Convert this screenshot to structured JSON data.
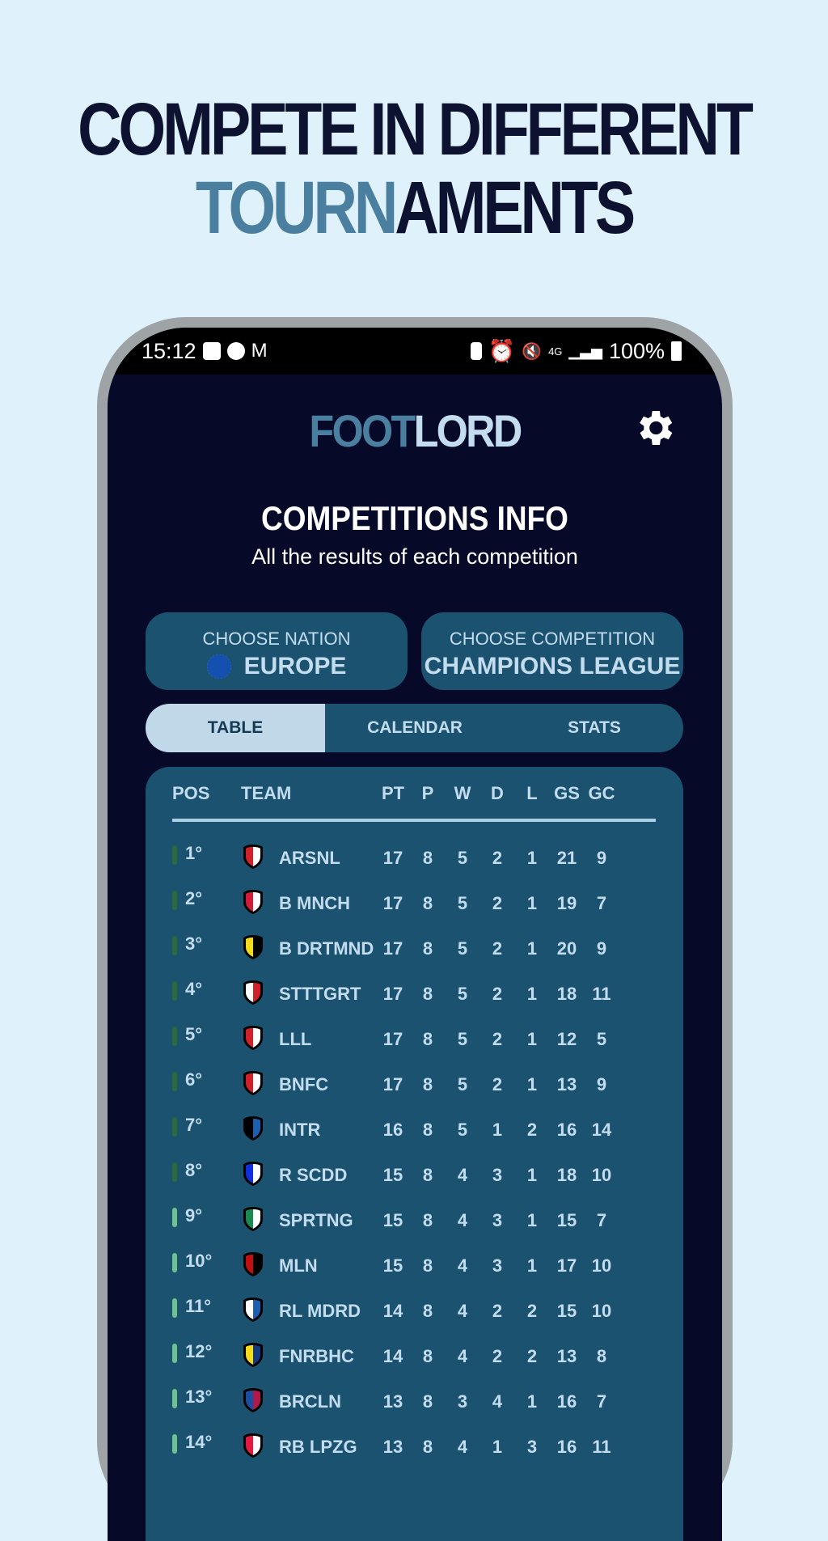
{
  "headline": {
    "line1": "COMPETE IN DIFFERENT",
    "line2_accent": "TOURN",
    "line2_rest": "AMENTS"
  },
  "status_bar": {
    "time": "15:12",
    "battery": "100%",
    "network": "4G"
  },
  "app": {
    "logo_a": "FOOT",
    "logo_b": "LORD",
    "title": "COMPETITIONS INFO",
    "subtitle": "All the results of each competition"
  },
  "nation": {
    "label": "CHOOSE NATION",
    "value": "EUROPE",
    "icon": "eu-flag-icon"
  },
  "competition": {
    "label": "CHOOSE COMPETITION",
    "value": "CHAMPIONS LEAGUE"
  },
  "tabs": [
    {
      "label": "TABLE",
      "active": true
    },
    {
      "label": "CALENDAR",
      "active": false
    },
    {
      "label": "STATS",
      "active": false
    }
  ],
  "colors": {
    "accent": "#4a7fa0",
    "background": "#060a28",
    "card": "#1b5270",
    "zone_top": "#2d6a3a",
    "zone_playoff": "#6fc28f"
  },
  "table": {
    "headers": [
      "POS",
      "TEAM",
      "PT",
      "P",
      "W",
      "D",
      "L",
      "GS",
      "GC"
    ],
    "rows": [
      {
        "pos": "1°",
        "team": "ARSNL",
        "pt": "17",
        "p": "8",
        "w": "5",
        "d": "2",
        "l": "1",
        "gs": "21",
        "gc": "9",
        "zone": "top",
        "kit": [
          "#d0202a",
          "#ffffff"
        ]
      },
      {
        "pos": "2°",
        "team": "B MNCH",
        "pt": "17",
        "p": "8",
        "w": "5",
        "d": "2",
        "l": "1",
        "gs": "19",
        "gc": "7",
        "zone": "top",
        "kit": [
          "#d01c3a",
          "#ffffff"
        ]
      },
      {
        "pos": "3°",
        "team": "B DRTMND",
        "pt": "17",
        "p": "8",
        "w": "5",
        "d": "2",
        "l": "1",
        "gs": "20",
        "gc": "9",
        "zone": "top",
        "kit": [
          "#f5dc1a",
          "#000000"
        ]
      },
      {
        "pos": "4°",
        "team": "STTTGRT",
        "pt": "17",
        "p": "8",
        "w": "5",
        "d": "2",
        "l": "1",
        "gs": "18",
        "gc": "11",
        "zone": "top",
        "kit": [
          "#ffffff",
          "#d0202a"
        ]
      },
      {
        "pos": "5°",
        "team": "LLL",
        "pt": "17",
        "p": "8",
        "w": "5",
        "d": "2",
        "l": "1",
        "gs": "12",
        "gc": "5",
        "zone": "top",
        "kit": [
          "#d0202a",
          "#ffffff"
        ]
      },
      {
        "pos": "6°",
        "team": "BNFC",
        "pt": "17",
        "p": "8",
        "w": "5",
        "d": "2",
        "l": "1",
        "gs": "13",
        "gc": "9",
        "zone": "top",
        "kit": [
          "#d0202a",
          "#ffffff"
        ]
      },
      {
        "pos": "7°",
        "team": "INTR",
        "pt": "16",
        "p": "8",
        "w": "5",
        "d": "1",
        "l": "2",
        "gs": "16",
        "gc": "14",
        "zone": "top",
        "kit": [
          "#000000",
          "#1a5fb0"
        ]
      },
      {
        "pos": "8°",
        "team": "R SCDD",
        "pt": "15",
        "p": "8",
        "w": "4",
        "d": "3",
        "l": "1",
        "gs": "18",
        "gc": "10",
        "zone": "top",
        "kit": [
          "#1030e0",
          "#ffffff"
        ]
      },
      {
        "pos": "9°",
        "team": "SPRTNG",
        "pt": "15",
        "p": "8",
        "w": "4",
        "d": "3",
        "l": "1",
        "gs": "15",
        "gc": "7",
        "zone": "playoff",
        "kit": [
          "#1a8a50",
          "#ffffff"
        ]
      },
      {
        "pos": "10°",
        "team": "MLN",
        "pt": "15",
        "p": "8",
        "w": "4",
        "d": "3",
        "l": "1",
        "gs": "17",
        "gc": "10",
        "zone": "playoff",
        "kit": [
          "#c01010",
          "#000000"
        ]
      },
      {
        "pos": "11°",
        "team": "RL MDRD",
        "pt": "14",
        "p": "8",
        "w": "4",
        "d": "2",
        "l": "2",
        "gs": "15",
        "gc": "10",
        "zone": "playoff",
        "kit": [
          "#ffffff",
          "#1a5fb0"
        ]
      },
      {
        "pos": "12°",
        "team": "FNRBHC",
        "pt": "14",
        "p": "8",
        "w": "4",
        "d": "2",
        "l": "2",
        "gs": "13",
        "gc": "8",
        "zone": "playoff",
        "kit": [
          "#f5dc1a",
          "#123a80"
        ]
      },
      {
        "pos": "13°",
        "team": "BRCLN",
        "pt": "13",
        "p": "8",
        "w": "3",
        "d": "4",
        "l": "1",
        "gs": "16",
        "gc": "7",
        "zone": "playoff",
        "kit": [
          "#1a4fa0",
          "#b01a4a"
        ]
      },
      {
        "pos": "14°",
        "team": "RB LPZG",
        "pt": "13",
        "p": "8",
        "w": "4",
        "d": "1",
        "l": "3",
        "gs": "16",
        "gc": "11",
        "zone": "playoff",
        "kit": [
          "#e01a40",
          "#ffffff"
        ]
      }
    ]
  }
}
